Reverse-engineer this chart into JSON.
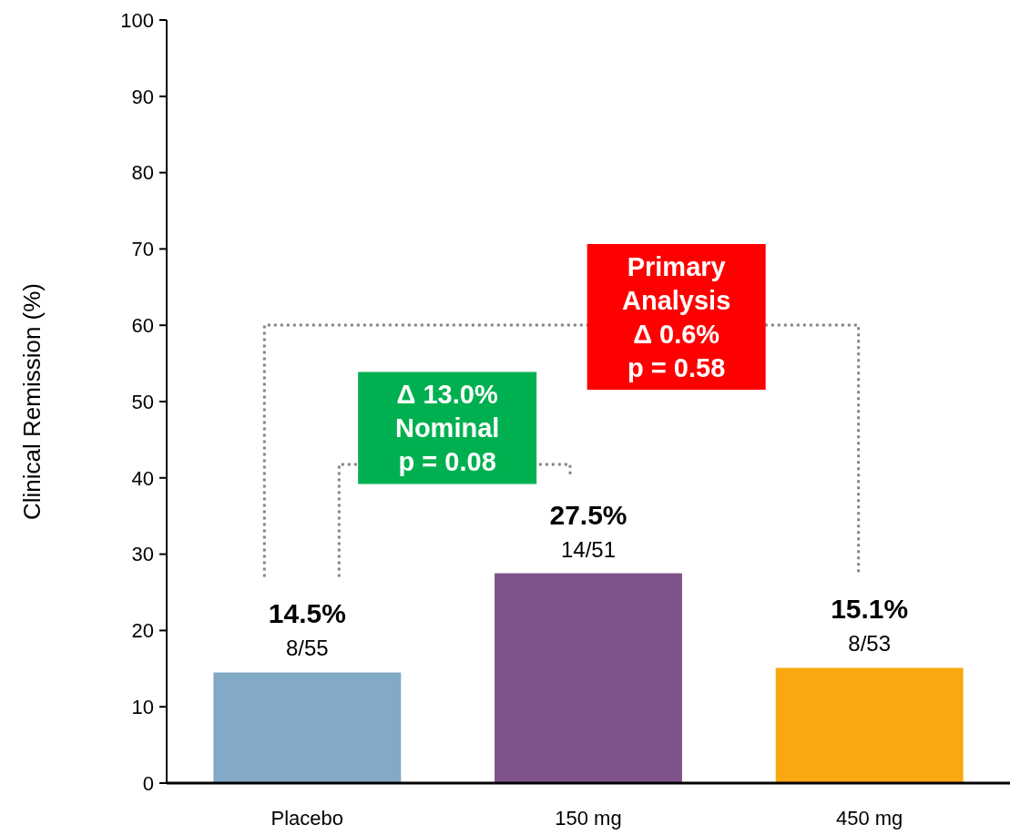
{
  "chart_data": {
    "type": "bar",
    "ylabel": "Clinical Remission (%)",
    "categories": [
      "Placebo",
      "150 mg",
      "450 mg"
    ],
    "values": [
      14.5,
      27.5,
      15.1
    ],
    "colors": [
      "#82a9c6",
      "#80528c",
      "#f9a80f"
    ],
    "value_labels": [
      "14.5%",
      "27.5%",
      "15.1%"
    ],
    "ylim": [
      0,
      100
    ],
    "yticks": [
      0,
      10,
      20,
      30,
      40,
      50,
      60,
      70,
      80,
      90,
      100
    ],
    "grid": false,
    "annotations": [
      {
        "text": "8/55",
        "x": "Placebo",
        "y": 14.5
      },
      {
        "text": "14/51",
        "x": "150 mg",
        "y": 27.5
      },
      {
        "text": "8/53",
        "x": "450 mg",
        "y": 15.1
      },
      "Δ 13.0%\nNominal\np = 0.08",
      "Primary\nAnalysis\nΔ 0.6%\np = 0.58"
    ]
  }
}
